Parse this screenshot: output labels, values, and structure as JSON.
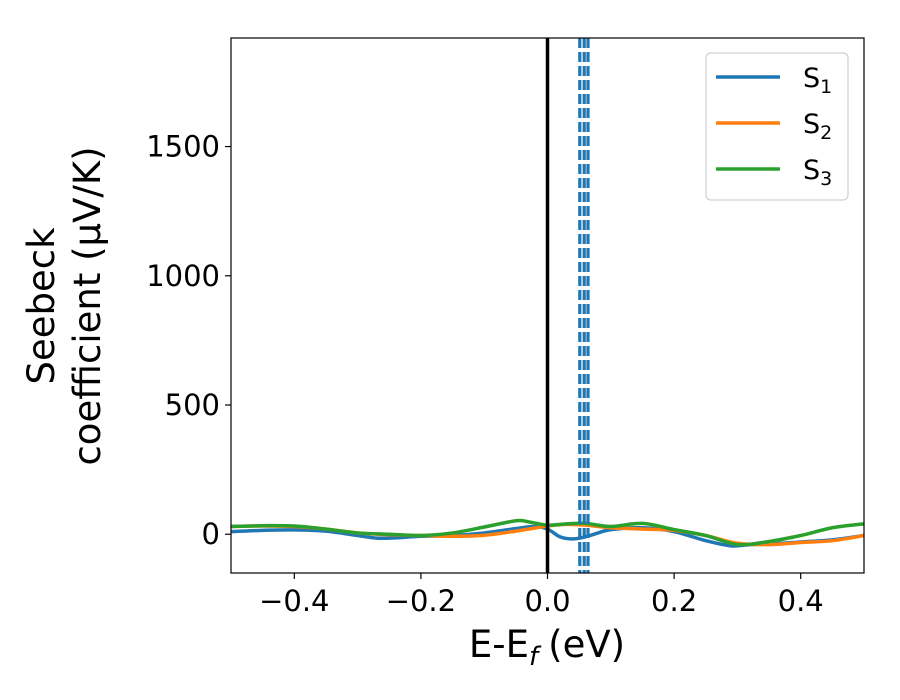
{
  "chart_data": {
    "type": "line",
    "xlabel": "E-E",
    "xlabel_sub": "f",
    "xlabel_unit": "(eV)",
    "ylabel_line1": "Seebeck",
    "ylabel_line2": "coefficient  (μV/K)",
    "xlim": [
      -0.5,
      0.5
    ],
    "ylim": [
      -150,
      1920
    ],
    "xticks": [
      -0.4,
      -0.2,
      0.0,
      0.2,
      0.4
    ],
    "xtick_labels": [
      "−0.4",
      "−0.2",
      "0.0",
      "0.2",
      "0.4"
    ],
    "yticks": [
      0,
      500,
      1000,
      1500
    ],
    "ytick_labels": [
      "0",
      "500",
      "1000",
      "1500"
    ],
    "grid": false,
    "legend_position": "top-right",
    "fermi_line_x": 0.0,
    "dashed_lines_x": [
      0.051,
      0.058,
      0.064
    ],
    "colors": {
      "S1": "#1f77b4",
      "S2": "#ff7f0e",
      "S3": "#2ca02c",
      "fermi": "#000000",
      "dashed": "#1f77b4"
    },
    "series": [
      {
        "name": "S",
        "sub": "1",
        "color": "#1f77b4",
        "x": [
          -0.5,
          -0.45,
          -0.4,
          -0.35,
          -0.3,
          -0.27,
          -0.24,
          -0.2,
          -0.15,
          -0.1,
          -0.05,
          -0.02,
          0.0,
          0.02,
          0.04,
          0.06,
          0.08,
          0.1,
          0.15,
          0.2,
          0.25,
          0.29,
          0.32,
          0.35,
          0.4,
          0.45,
          0.5
        ],
        "y": [
          10,
          15,
          17,
          12,
          -5,
          -15,
          -14,
          -8,
          -5,
          5,
          22,
          30,
          20,
          -10,
          -18,
          -10,
          5,
          18,
          25,
          10,
          -25,
          -45,
          -40,
          -38,
          -30,
          -22,
          -5
        ]
      },
      {
        "name": "S",
        "sub": "2",
        "color": "#ff7f0e",
        "x": [
          -0.5,
          -0.45,
          -0.4,
          -0.35,
          -0.3,
          -0.25,
          -0.2,
          -0.15,
          -0.1,
          -0.05,
          -0.02,
          0.0,
          0.03,
          0.06,
          0.1,
          0.15,
          0.2,
          0.25,
          0.3,
          0.35,
          0.4,
          0.45,
          0.5
        ],
        "y": [
          30,
          32,
          30,
          20,
          5,
          -2,
          -5,
          -8,
          -4,
          12,
          24,
          32,
          38,
          35,
          25,
          20,
          15,
          -5,
          -35,
          -40,
          -32,
          -25,
          -5
        ]
      },
      {
        "name": "S",
        "sub": "3",
        "color": "#2ca02c",
        "x": [
          -0.5,
          -0.45,
          -0.4,
          -0.35,
          -0.3,
          -0.25,
          -0.2,
          -0.15,
          -0.1,
          -0.05,
          -0.03,
          0.0,
          0.03,
          0.06,
          0.1,
          0.15,
          0.2,
          0.25,
          0.3,
          0.35,
          0.4,
          0.45,
          0.5
        ],
        "y": [
          30,
          33,
          32,
          20,
          5,
          0,
          -5,
          5,
          28,
          52,
          48,
          35,
          40,
          42,
          30,
          42,
          18,
          -5,
          -40,
          -28,
          -5,
          25,
          40
        ]
      }
    ]
  }
}
